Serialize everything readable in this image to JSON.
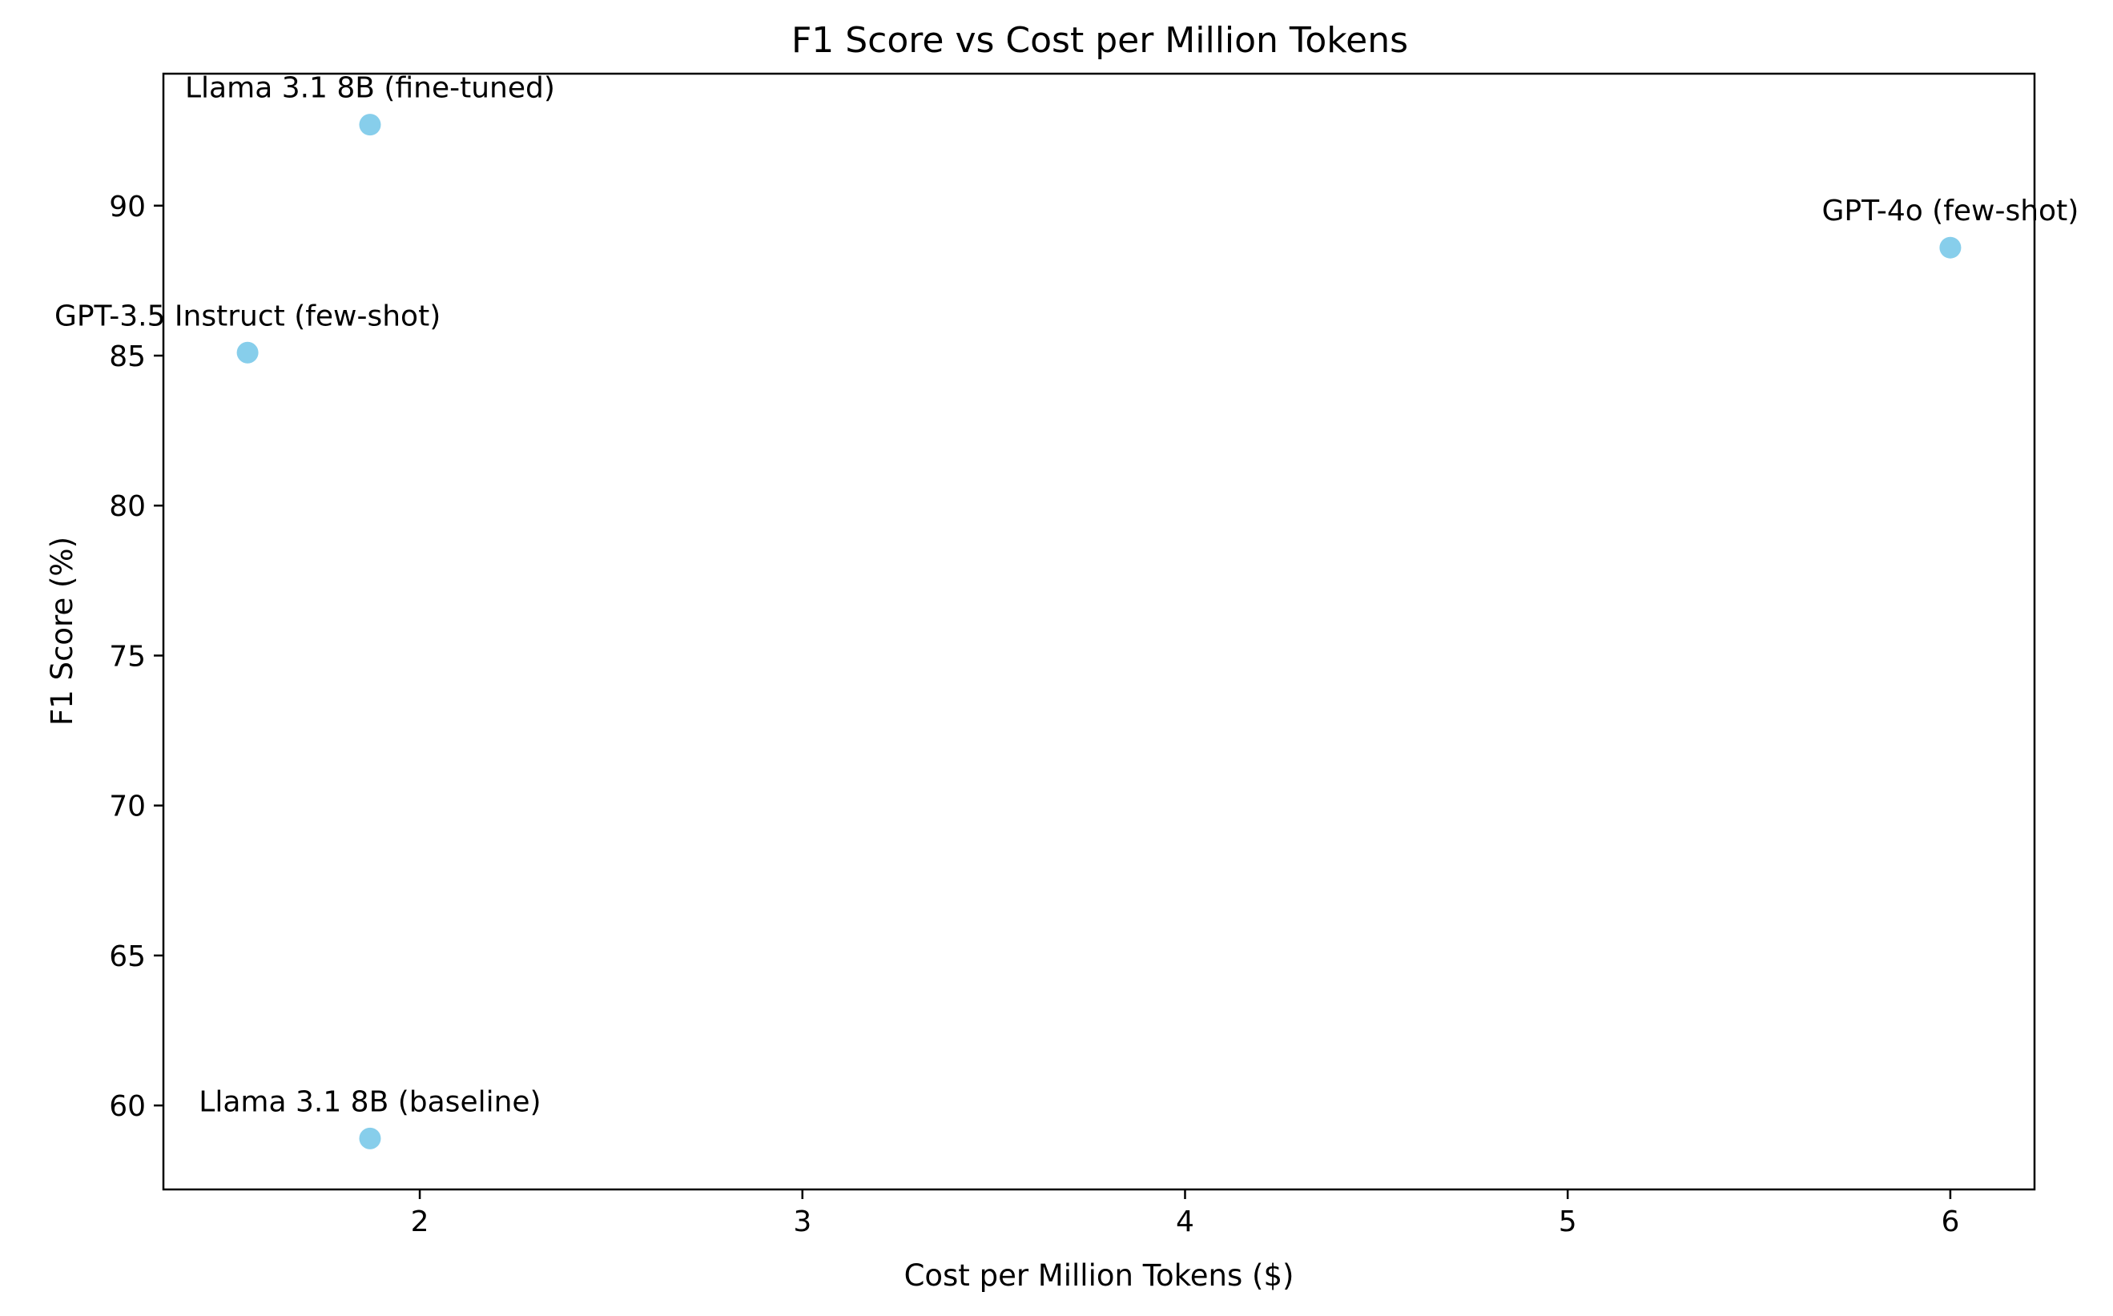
{
  "chart_data": {
    "type": "scatter",
    "title": "F1 Score vs Cost per Million Tokens",
    "xlabel": "Cost per Million Tokens ($)",
    "ylabel": "F1 Score (%)",
    "xlim": [
      1.33,
      6.22
    ],
    "ylim": [
      57.2,
      94.4
    ],
    "xticks": [
      2,
      3,
      4,
      5,
      6
    ],
    "yticks": [
      60,
      65,
      70,
      75,
      80,
      85,
      90
    ],
    "grid": false,
    "marker_color": "#87CEEB",
    "points": [
      {
        "label": "Llama 3.1 8B (fine-tuned)",
        "x": 1.87,
        "y": 92.7
      },
      {
        "label": "GPT-4o (few-shot)",
        "x": 6.0,
        "y": 88.6
      },
      {
        "label": "GPT-3.5 Instruct (few-shot)",
        "x": 1.55,
        "y": 85.1
      },
      {
        "label": "Llama 3.1 8B (baseline)",
        "x": 1.87,
        "y": 58.9
      }
    ]
  }
}
